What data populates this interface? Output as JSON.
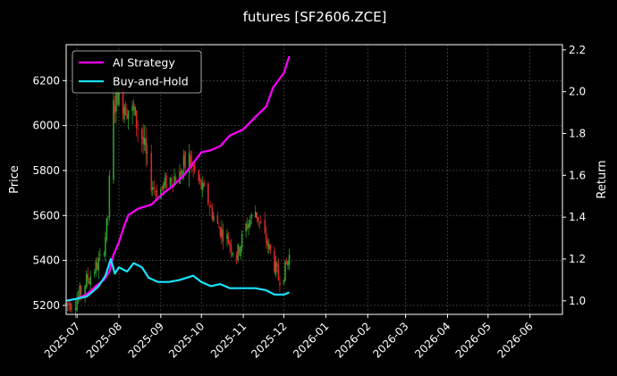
{
  "chart_data": {
    "type": "line",
    "title": "futures [SF2606.ZCE]",
    "ylabel_left": "Price",
    "ylabel_right": "Return",
    "x_range": [
      "2025-06-23",
      "2026-06-25"
    ],
    "x_ticks": [
      "2025-07",
      "2025-08",
      "2025-09",
      "2025-10",
      "2025-11",
      "2025-12",
      "2026-01",
      "2026-02",
      "2026-03",
      "2026-04",
      "2026-05",
      "2026-06"
    ],
    "price_ylim": [
      5160,
      6360
    ],
    "price_ticks": [
      5200,
      5400,
      5600,
      5800,
      6000,
      6200
    ],
    "return_ylim": [
      0.935,
      2.225
    ],
    "return_ticks": [
      1.0,
      1.2,
      1.4,
      1.6,
      1.8,
      2.0,
      2.2
    ],
    "grid": true,
    "legend_position": "top-left",
    "colors": {
      "up": "#2ca02c",
      "down": "#d62728",
      "ai": "#ff00ff",
      "bh": "#19e3ff"
    },
    "series": [
      {
        "name": "AI Strategy",
        "axis": "right",
        "color": "#ff00ff",
        "points": [
          [
            "2025-06-23",
            1.0
          ],
          [
            "2025-07-01",
            1.01
          ],
          [
            "2025-07-08",
            1.03
          ],
          [
            "2025-07-15",
            1.07
          ],
          [
            "2025-07-21",
            1.1
          ],
          [
            "2025-07-25",
            1.14
          ],
          [
            "2025-07-28",
            1.22
          ],
          [
            "2025-08-01",
            1.28
          ],
          [
            "2025-08-05",
            1.36
          ],
          [
            "2025-08-08",
            1.41
          ],
          [
            "2025-08-15",
            1.44
          ],
          [
            "2025-08-25",
            1.46
          ],
          [
            "2025-09-02",
            1.51
          ],
          [
            "2025-09-10",
            1.55
          ],
          [
            "2025-09-18",
            1.6
          ],
          [
            "2025-09-25",
            1.66
          ],
          [
            "2025-10-01",
            1.71
          ],
          [
            "2025-10-08",
            1.72
          ],
          [
            "2025-10-15",
            1.74
          ],
          [
            "2025-10-22",
            1.79
          ],
          [
            "2025-11-01",
            1.82
          ],
          [
            "2025-11-10",
            1.88
          ],
          [
            "2025-11-18",
            1.93
          ],
          [
            "2025-11-23",
            2.02
          ],
          [
            "2025-12-01",
            2.09
          ],
          [
            "2025-12-05",
            2.17
          ]
        ]
      },
      {
        "name": "Buy-and-Hold",
        "axis": "right",
        "color": "#19e3ff",
        "points": [
          [
            "2025-06-23",
            1.0
          ],
          [
            "2025-07-01",
            1.01
          ],
          [
            "2025-07-08",
            1.02
          ],
          [
            "2025-07-12",
            1.04
          ],
          [
            "2025-07-17",
            1.07
          ],
          [
            "2025-07-22",
            1.12
          ],
          [
            "2025-07-26",
            1.2
          ],
          [
            "2025-07-29",
            1.13
          ],
          [
            "2025-08-01",
            1.16
          ],
          [
            "2025-08-07",
            1.14
          ],
          [
            "2025-08-12",
            1.18
          ],
          [
            "2025-08-18",
            1.16
          ],
          [
            "2025-08-23",
            1.11
          ],
          [
            "2025-08-30",
            1.09
          ],
          [
            "2025-09-07",
            1.09
          ],
          [
            "2025-09-15",
            1.1
          ],
          [
            "2025-09-25",
            1.12
          ],
          [
            "2025-10-01",
            1.09
          ],
          [
            "2025-10-08",
            1.07
          ],
          [
            "2025-10-15",
            1.08
          ],
          [
            "2025-10-22",
            1.06
          ],
          [
            "2025-11-01",
            1.06
          ],
          [
            "2025-11-10",
            1.06
          ],
          [
            "2025-11-18",
            1.05
          ],
          [
            "2025-11-24",
            1.03
          ],
          [
            "2025-12-01",
            1.03
          ],
          [
            "2025-12-05",
            1.04
          ]
        ]
      }
    ],
    "price_path": [
      [
        "2025-06-23",
        5205
      ],
      [
        "2025-07-01",
        5225
      ],
      [
        "2025-07-07",
        5300
      ],
      [
        "2025-07-14",
        5360
      ],
      [
        "2025-07-20",
        5420
      ],
      [
        "2025-07-24",
        5600
      ],
      [
        "2025-07-27",
        6050
      ],
      [
        "2025-07-31",
        6150
      ],
      [
        "2025-08-05",
        6100
      ],
      [
        "2025-08-12",
        6050
      ],
      [
        "2025-08-18",
        5950
      ],
      [
        "2025-08-24",
        5750
      ],
      [
        "2025-08-30",
        5700
      ],
      [
        "2025-09-07",
        5760
      ],
      [
        "2025-09-15",
        5780
      ],
      [
        "2025-09-22",
        5850
      ],
      [
        "2025-09-28",
        5760
      ],
      [
        "2025-10-05",
        5680
      ],
      [
        "2025-10-12",
        5560
      ],
      [
        "2025-10-20",
        5500
      ],
      [
        "2025-10-27",
        5420
      ],
      [
        "2025-11-03",
        5550
      ],
      [
        "2025-11-10",
        5620
      ],
      [
        "2025-11-17",
        5500
      ],
      [
        "2025-11-22",
        5420
      ],
      [
        "2025-11-27",
        5320
      ],
      [
        "2025-12-02",
        5360
      ],
      [
        "2025-12-05",
        5420
      ]
    ]
  }
}
